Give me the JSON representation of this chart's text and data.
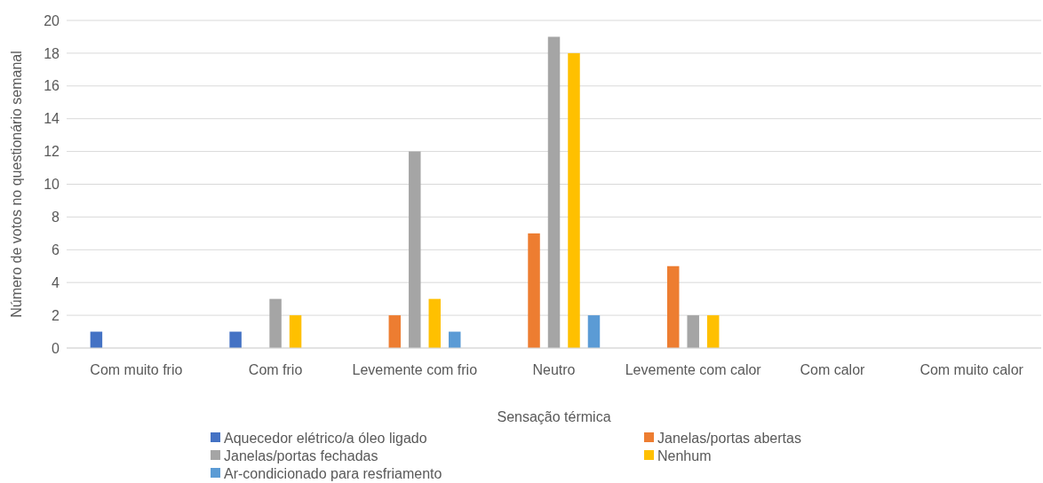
{
  "chart_data": {
    "type": "bar",
    "xlabel": "Sensação térmica",
    "ylabel": "Número de votos no questionário semanal",
    "categories": [
      "Com muito frio",
      "Com frio",
      "Levemente com frio",
      "Neutro",
      "Levemente com calor",
      "Com calor",
      "Com muito calor"
    ],
    "series": [
      {
        "name": "Aquecedor elétrico/a óleo ligado",
        "color": "#4472c4",
        "values": [
          1,
          1,
          0,
          0,
          0,
          0,
          0
        ]
      },
      {
        "name": "Janelas/portas abertas",
        "color": "#ed7d31",
        "values": [
          0,
          0,
          2,
          7,
          5,
          0,
          0
        ]
      },
      {
        "name": "Janelas/portas fechadas",
        "color": "#a5a5a5",
        "values": [
          0,
          3,
          12,
          19,
          2,
          0,
          0
        ]
      },
      {
        "name": "Nenhum",
        "color": "#ffc000",
        "values": [
          0,
          2,
          3,
          18,
          2,
          0,
          0
        ]
      },
      {
        "name": "Ar-condicionado para resfriamento",
        "color": "#5b9bd5",
        "values": [
          0,
          0,
          1,
          2,
          0,
          0,
          0
        ]
      }
    ],
    "ylim": [
      0,
      20
    ],
    "yticks": [
      0,
      2,
      4,
      6,
      8,
      10,
      12,
      14,
      16,
      18,
      20
    ],
    "grid": "y",
    "legend": "bottom"
  }
}
